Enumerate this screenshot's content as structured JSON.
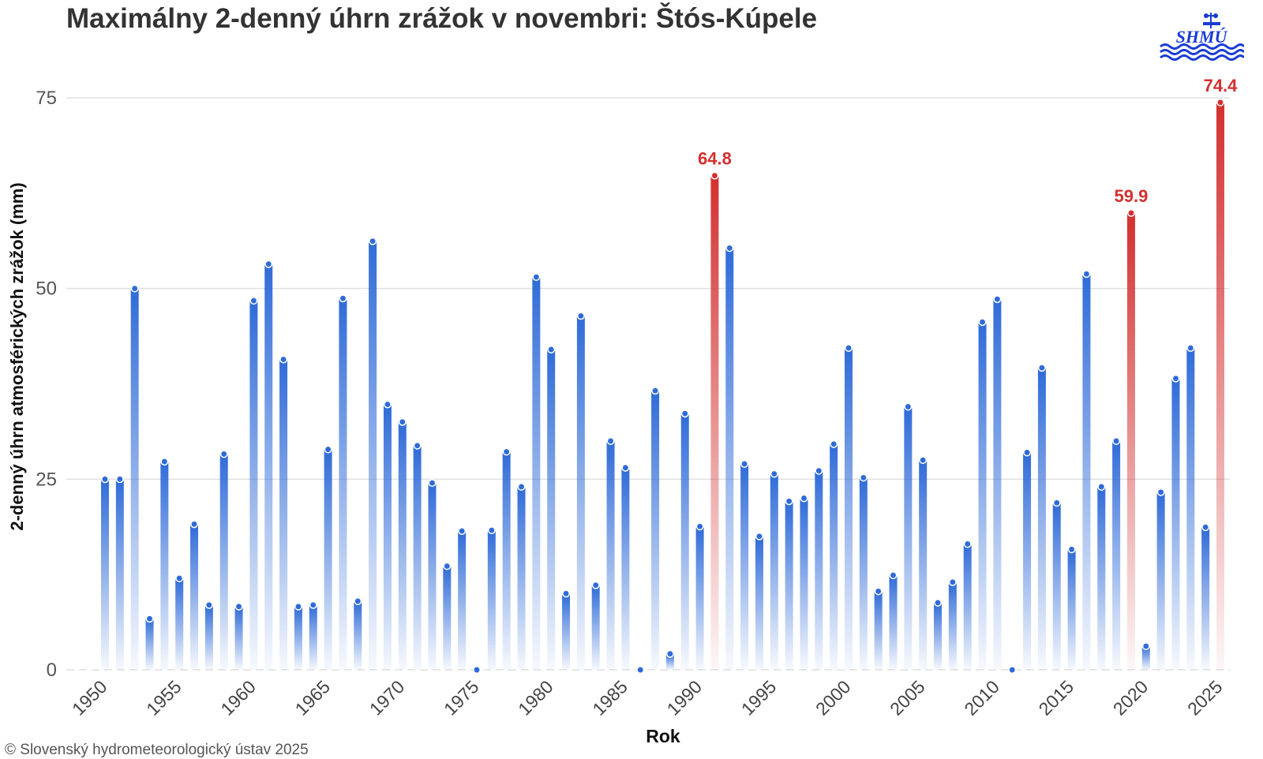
{
  "chart_data": {
    "type": "bar",
    "title": "Maximálny 2-denný úhrn zrážok v novembri: Štós-Kúpele",
    "xlabel": "Rok",
    "ylabel": "2-denný úhrn atmosférických zrážok (mm)",
    "ylim": [
      0,
      75
    ],
    "yticks": [
      0,
      25,
      50,
      75
    ],
    "xticks": [
      1950,
      1955,
      1960,
      1965,
      1970,
      1975,
      1980,
      1985,
      1990,
      1995,
      2000,
      2005,
      2010,
      2015,
      2020,
      2025
    ],
    "grid": true,
    "x": [
      1950,
      1951,
      1952,
      1953,
      1954,
      1955,
      1956,
      1957,
      1958,
      1959,
      1960,
      1961,
      1962,
      1963,
      1964,
      1965,
      1966,
      1967,
      1968,
      1969,
      1970,
      1971,
      1972,
      1973,
      1974,
      1975,
      1976,
      1977,
      1978,
      1979,
      1980,
      1981,
      1982,
      1983,
      1984,
      1985,
      1986,
      1987,
      1988,
      1989,
      1990,
      1991,
      1992,
      1993,
      1994,
      1995,
      1996,
      1997,
      1998,
      1999,
      2000,
      2001,
      2002,
      2003,
      2004,
      2005,
      2006,
      2007,
      2008,
      2009,
      2010,
      2011,
      2012,
      2013,
      2014,
      2015,
      2016,
      2017,
      2018,
      2019,
      2020,
      2021,
      2022,
      2023,
      2024,
      2025
    ],
    "values": [
      25.0,
      25.0,
      50.0,
      6.7,
      27.3,
      12.0,
      19.1,
      8.5,
      28.3,
      8.3,
      48.4,
      53.2,
      40.7,
      8.3,
      8.5,
      28.9,
      48.7,
      9.0,
      56.2,
      34.8,
      32.5,
      29.4,
      24.5,
      13.6,
      18.2,
      0.0,
      18.3,
      28.6,
      24.0,
      51.5,
      42.0,
      10.0,
      46.4,
      11.1,
      30.0,
      26.5,
      0.0,
      36.6,
      2.1,
      33.6,
      18.8,
      64.8,
      55.3,
      27.0,
      17.5,
      25.7,
      22.1,
      22.5,
      26.1,
      29.6,
      42.2,
      25.2,
      10.3,
      12.4,
      34.5,
      27.5,
      8.8,
      11.5,
      16.5,
      45.6,
      48.6,
      0.0,
      28.5,
      39.6,
      21.9,
      15.8,
      51.9,
      24.0,
      30.0,
      59.9,
      3.1,
      23.3,
      38.2,
      42.2,
      18.7,
      74.4
    ],
    "highlighted": [
      {
        "year": 1991,
        "value": 64.8,
        "label": "64.8"
      },
      {
        "year": 2019,
        "value": 59.9,
        "label": "59.9"
      },
      {
        "year": 2025,
        "value": 74.4,
        "label": "74.4"
      }
    ],
    "colors": {
      "normal": "#2f6bd8",
      "highlight": "#d32f2f",
      "grid": "#e0e0e0"
    }
  },
  "footer": {
    "copyright": "© Slovenský hydrometeorologický ústav 2025"
  },
  "logo": {
    "text": "SHMÚ",
    "icon": "shmu-logo-icon"
  }
}
